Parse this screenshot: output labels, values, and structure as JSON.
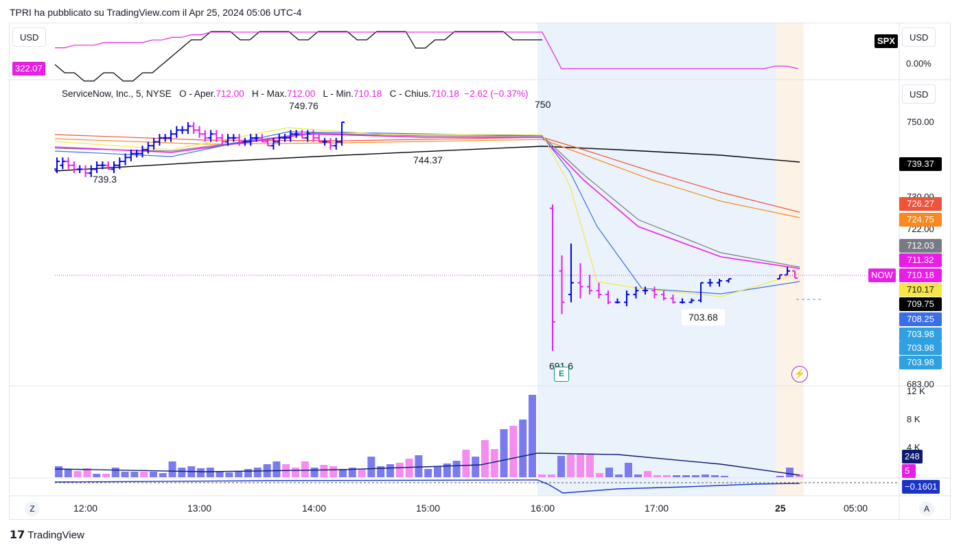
{
  "header": {
    "text": "TPRI ha pubblicato su TradingView.com il Apr 25, 2024 05:06 UTC-4"
  },
  "footer": {
    "logo_icon": "tradingview-logo-icon",
    "text": "TradingView"
  },
  "currency": {
    "top_left": "USD",
    "top_right": "USD",
    "main_right": "USD"
  },
  "compare": {
    "symbol": "SPX",
    "pct": "0.00%",
    "left_value": "322.07"
  },
  "legend": {
    "name": "ServiceNow, Inc., 5, NYSE",
    "o_label": "O - Aper.",
    "o_val": "712.00",
    "h_label": "H - Max.",
    "h_val": "712.00",
    "l_label": "L - Min.",
    "l_val": "710.18",
    "c_label": "C - Chius.",
    "c_val": "710.18",
    "change": "−2.62 (−0.37%)"
  },
  "annotations": {
    "a1": "749.76",
    "a2": "750",
    "a3": "744.37",
    "a4": "739.3",
    "a5": "703.68",
    "a6": "691.6",
    "earnings": "E"
  },
  "price_axis": {
    "ticks": [
      "750.00",
      "730.00",
      "722.00",
      "683.00"
    ]
  },
  "price_tags": [
    {
      "value": "739.37",
      "color": "#000000"
    },
    {
      "value": "726.27",
      "color": "#f0523c"
    },
    {
      "value": "724.75",
      "color": "#f7891e"
    },
    {
      "value": "712.03",
      "color": "#787b86"
    },
    {
      "value": "711.32",
      "color": "#e91ee6"
    },
    {
      "value": "710.18",
      "color": "#e91ee6",
      "prefix": "NOW"
    },
    {
      "value": "710.17",
      "color": "#f5e546",
      "dark_text": true
    },
    {
      "value": "709.75",
      "color": "#000000"
    },
    {
      "value": "708.25",
      "color": "#3a6ee8"
    },
    {
      "value": "703.98",
      "color": "#2fa0e0"
    },
    {
      "value": "703.98",
      "color": "#2fa0e0"
    },
    {
      "value": "703.98",
      "color": "#2fa0e0"
    }
  ],
  "volume_axis": {
    "ticks": [
      "12 K",
      "8 K",
      "4 K"
    ],
    "tag_ma": "248",
    "tag_vol": "5"
  },
  "osc": {
    "tag": "−0.1601"
  },
  "time_axis": {
    "labels": [
      "12:00",
      "13:00",
      "14:00",
      "15:00",
      "16:00",
      "17:00",
      "25",
      "05:00"
    ],
    "left_btn": "Z",
    "right_btn": "A"
  },
  "chart_data": {
    "type": "bar",
    "title": "ServiceNow, Inc., 5, NYSE",
    "ylim": [
      683,
      758
    ],
    "x_time_range": [
      "11:40",
      "05:20"
    ],
    "series": [
      {
        "values": [
          [
            738,
            741,
            737,
            740
          ],
          [
            739,
            741,
            738,
            740
          ],
          [
            740,
            741,
            738,
            739
          ],
          [
            739,
            740,
            737,
            738
          ],
          [
            738,
            739,
            737,
            738
          ],
          [
            738,
            739,
            736,
            737
          ],
          [
            737,
            739,
            736,
            738
          ],
          [
            738,
            740,
            737,
            739
          ],
          [
            739,
            740,
            738,
            739
          ],
          [
            739,
            740,
            738,
            738
          ],
          [
            738,
            740,
            737,
            739
          ],
          [
            739,
            741,
            738,
            740
          ],
          [
            740,
            742,
            739,
            741
          ],
          [
            741,
            743,
            740,
            742
          ],
          [
            742,
            743,
            741,
            742
          ],
          [
            742,
            744,
            741,
            743
          ],
          [
            743,
            745,
            742,
            744
          ],
          [
            744,
            746,
            743,
            745
          ],
          [
            745,
            747,
            744,
            746
          ],
          [
            746,
            747,
            745,
            746
          ],
          [
            746,
            748,
            745,
            747
          ],
          [
            747,
            749,
            746,
            748
          ],
          [
            748,
            749,
            747,
            748
          ],
          [
            748,
            750,
            747,
            749
          ],
          [
            749,
            750,
            747,
            748
          ],
          [
            748,
            749,
            746,
            747
          ],
          [
            747,
            748,
            745,
            746
          ],
          [
            746,
            748,
            745,
            747
          ],
          [
            747,
            748,
            745,
            746
          ],
          [
            746,
            747,
            744,
            745
          ],
          [
            745,
            747,
            744,
            746
          ],
          [
            746,
            747,
            745,
            746
          ],
          [
            746,
            747,
            744,
            745
          ],
          [
            745,
            746,
            744,
            745
          ],
          [
            745,
            747,
            744,
            746
          ],
          [
            746,
            747,
            745,
            746
          ],
          [
            746,
            747,
            745,
            745
          ],
          [
            745,
            746,
            744,
            744
          ],
          [
            744,
            746,
            743,
            745
          ],
          [
            745,
            747,
            744,
            746
          ],
          [
            746,
            747,
            745,
            746
          ],
          [
            746,
            748,
            745,
            747
          ],
          [
            747,
            748,
            746,
            747
          ],
          [
            747,
            748,
            746,
            746
          ],
          [
            746,
            748,
            745,
            747
          ],
          [
            747,
            748,
            745,
            746
          ],
          [
            746,
            747,
            745,
            745
          ],
          [
            745,
            746,
            744,
            745
          ],
          [
            745,
            746,
            743,
            744
          ],
          [
            744,
            746,
            743,
            745
          ],
          [
            745,
            750,
            744,
            750
          ],
          [
            728,
            729,
            691.6,
            699
          ],
          [
            712,
            716,
            701,
            704
          ],
          [
            706,
            719,
            704,
            709
          ],
          [
            709,
            714,
            705,
            708
          ],
          [
            708,
            711,
            706,
            707
          ],
          [
            707,
            709,
            705,
            706
          ],
          [
            706,
            707,
            703.5,
            704
          ],
          [
            704,
            705,
            703.68,
            704
          ],
          [
            704,
            707,
            703,
            706
          ],
          [
            706,
            708,
            705,
            707
          ],
          [
            707,
            708,
            706,
            707
          ],
          [
            707,
            708,
            705,
            706
          ],
          [
            706,
            707,
            704.5,
            705
          ],
          [
            705,
            706,
            703.68,
            704
          ],
          [
            704,
            705,
            703.68,
            704
          ],
          [
            704,
            705,
            703.8,
            704.5
          ],
          [
            704.5,
            709,
            704,
            709
          ],
          [
            709,
            710,
            708,
            709
          ],
          [
            709,
            710,
            708,
            709.5
          ],
          [
            709.5,
            710,
            709,
            710
          ],
          [
            710,
            711,
            710,
            711
          ],
          [
            711,
            713,
            711,
            712
          ],
          [
            712,
            712,
            710.18,
            710.18
          ]
        ]
      },
      {
        "name": "SPX",
        "values": [
          506,
          505,
          505,
          504,
          504,
          505,
          505,
          504,
          504,
          505,
          505,
          506,
          507,
          508,
          509,
          509,
          510,
          510,
          510,
          509,
          509,
          510,
          510,
          510,
          510,
          509,
          509,
          510,
          510,
          510,
          510,
          509,
          509,
          510,
          510,
          510,
          510,
          508,
          508,
          509,
          509,
          510,
          510,
          510,
          510,
          510,
          510,
          509,
          509,
          509,
          509
        ]
      },
      {
        "name": "SPX %",
        "values": [
          0.08,
          0.08,
          0.09,
          0.09,
          0.09,
          0.1,
          0.1,
          0.1,
          0.1,
          0.1,
          0.11,
          0.11,
          0.12,
          0.12,
          0.13,
          0.13,
          0.14,
          0.14,
          0.14,
          0.14,
          0.14,
          0.14,
          0.14,
          0.14,
          0.14,
          0.14,
          0.14,
          0.14,
          0.14,
          0.14,
          0.14,
          0.14,
          0.14,
          0.14,
          0.14,
          0.14,
          0.14,
          0.14,
          0.14,
          0.14,
          0.14,
          0.14,
          0.14,
          0.14,
          0.14,
          0.14,
          0.14,
          0.14,
          0.14,
          0.14,
          0.14,
          0.0,
          0.0,
          0.0,
          0.0,
          0.0,
          0.0,
          0.0,
          0.0,
          0.0,
          0.0,
          0.0,
          0.0,
          0.0,
          0.0,
          0.0,
          0.0,
          0.0,
          0.0,
          0.0,
          0.01,
          0.01,
          0.0
        ]
      },
      {
        "name": "Volume",
        "values": [
          1.6,
          1.2,
          0.9,
          1.3,
          0.5,
          0.5,
          1.4,
          0.8,
          0.8,
          0.8,
          0.8,
          0.6,
          2.3,
          1.4,
          1.6,
          1.3,
          1.4,
          0.9,
          0.7,
          0.8,
          1.2,
          1.4,
          1.9,
          2.3,
          1.9,
          1.4,
          2.3,
          1.4,
          1.8,
          1.6,
          1.2,
          1.4,
          1.2,
          3.0,
          1.6,
          1.9,
          2.1,
          2.7,
          3.2,
          1.2,
          1.6,
          2.0,
          2.4,
          4.0,
          3.0,
          5.4,
          4.1,
          7.0,
          7.5,
          8.4,
          12.0,
          0.4,
          0.4,
          3.1,
          3.3,
          3.5,
          3.3,
          0.6,
          1.4,
          0.4,
          2.1,
          0.4,
          0.9,
          0.3,
          0.3,
          0.3,
          0.3,
          0.3,
          0.4,
          0.3,
          0.2,
          0.2,
          1.4,
          0.4
        ]
      }
    ]
  }
}
